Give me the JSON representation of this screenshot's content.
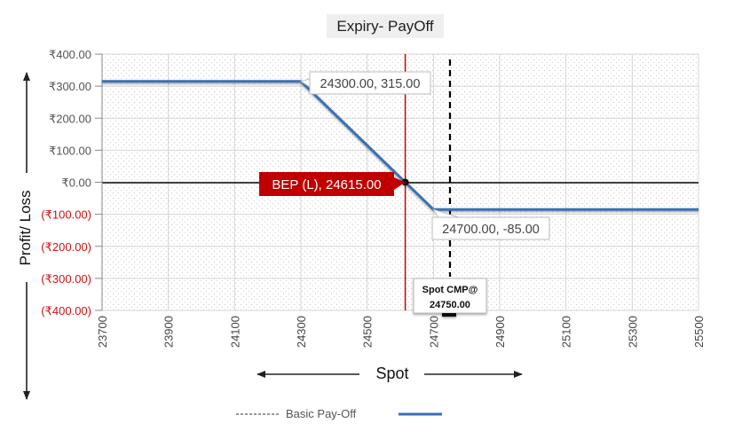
{
  "chart_data": {
    "type": "line",
    "title": "Expiry- PayOff",
    "xlabel": "Spot",
    "ylabel": "Profit/ Loss",
    "x": [
      23700,
      24300,
      24700,
      25500
    ],
    "series": [
      {
        "name": "",
        "values": [
          315,
          315,
          -85,
          -85
        ]
      }
    ],
    "xlim": [
      23700,
      25500
    ],
    "ylim": [
      -400,
      400
    ],
    "x_ticks": [
      23700,
      23900,
      24100,
      24300,
      24500,
      24700,
      24900,
      25100,
      25300,
      25500
    ],
    "x_tick_labels": [
      "23700",
      "23900",
      "24100",
      "24300",
      "24500",
      "24700",
      "24900",
      "25100",
      "25300",
      "25500"
    ],
    "y_ticks": [
      400,
      300,
      200,
      100,
      0,
      -100,
      -200,
      -300,
      -400
    ],
    "y_tick_labels": [
      "₹400.00",
      "₹300.00",
      "₹200.00",
      "₹100.00",
      "₹0.00",
      "(₹100.00)",
      "(₹200.00)",
      "(₹300.00)",
      "(₹400.00)"
    ],
    "vertical_lines": [
      {
        "x": 24615,
        "style": "solid",
        "color": "#cc0000"
      },
      {
        "x": 24750,
        "style": "dashed",
        "color": "#000000"
      }
    ],
    "annotations": [
      {
        "text": "24300.00, 315.00",
        "x": 24300,
        "y": 315
      },
      {
        "text": "BEP (L), 24615.00",
        "x": 24615,
        "y": 0
      },
      {
        "text": "24700.00, -85.00",
        "x": 24700,
        "y": -85
      },
      {
        "line1": "Spot CMP@",
        "line2": "24750.00",
        "x": 24750
      }
    ],
    "legend": [
      {
        "label": "Basic Pay-Off",
        "style": "dashed",
        "color": "#777777"
      },
      {
        "label": "",
        "style": "solid",
        "color": "#3a6fb5"
      }
    ],
    "legend_position": "bottom",
    "grid": true
  },
  "colors": {
    "payoff_line": "#3a6fb5",
    "bep_line": "#cc0000",
    "negative_label": "#d01010",
    "bep_badge": "#c00000"
  }
}
